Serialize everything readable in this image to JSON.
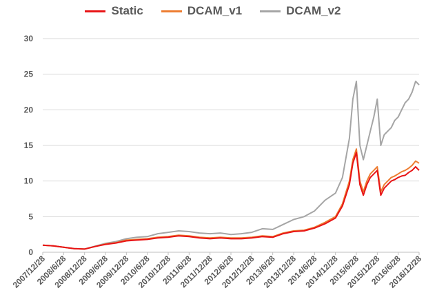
{
  "chart_data": {
    "type": "line",
    "title": "",
    "xlabel": "",
    "ylabel": "",
    "ylim": [
      0,
      30
    ],
    "yticks": [
      0,
      5,
      10,
      15,
      20,
      25,
      30
    ],
    "grid": "horizontal",
    "legend_position": "top",
    "x_tick_labels": [
      "2007/12/28",
      "2008/6/28",
      "2008/12/28",
      "2009/6/28",
      "2009/12/28",
      "2010/6/28",
      "2010/12/28",
      "2011/6/28",
      "2011/12/28",
      "2012/6/28",
      "2012/12/28",
      "2013/6/28",
      "2013/12/28",
      "2014/6/28",
      "2014/12/28",
      "2015/6/28",
      "2015/12/28",
      "2016/6/28",
      "2016/12/28"
    ],
    "x": [
      "2007-12",
      "2008-03",
      "2008-06",
      "2008-09",
      "2008-12",
      "2009-03",
      "2009-06",
      "2009-09",
      "2009-12",
      "2010-03",
      "2010-06",
      "2010-09",
      "2010-12",
      "2011-03",
      "2011-06",
      "2011-09",
      "2011-12",
      "2012-03",
      "2012-06",
      "2012-09",
      "2012-12",
      "2013-03",
      "2013-06",
      "2013-09",
      "2013-12",
      "2014-03",
      "2014-06",
      "2014-09",
      "2014-12",
      "2015-02",
      "2015-04",
      "2015-05",
      "2015-06",
      "2015-07",
      "2015-08",
      "2015-09",
      "2015-10",
      "2015-11",
      "2015-12",
      "2016-01",
      "2016-02",
      "2016-03",
      "2016-04",
      "2016-05",
      "2016-06",
      "2016-07",
      "2016-08",
      "2016-09",
      "2016-10",
      "2016-11",
      "2016-12"
    ],
    "series": [
      {
        "name": "Static",
        "color": "#e81416",
        "values": [
          1.0,
          0.9,
          0.7,
          0.5,
          0.45,
          0.8,
          1.1,
          1.3,
          1.6,
          1.7,
          1.8,
          2.0,
          2.1,
          2.3,
          2.2,
          2.0,
          1.9,
          2.0,
          1.9,
          1.9,
          2.0,
          2.2,
          2.1,
          2.6,
          2.9,
          3.0,
          3.4,
          4.0,
          4.8,
          6.5,
          9.5,
          12.5,
          14.0,
          9.5,
          8.0,
          9.5,
          10.5,
          11.0,
          11.5,
          8.0,
          9.0,
          9.5,
          10.0,
          10.2,
          10.5,
          10.7,
          10.8,
          11.2,
          11.5,
          12.0,
          11.5
        ]
      },
      {
        "name": "DCAM_v1",
        "color": "#ed7d31",
        "values": [
          1.0,
          0.9,
          0.7,
          0.5,
          0.45,
          0.8,
          1.15,
          1.35,
          1.7,
          1.8,
          1.9,
          2.1,
          2.2,
          2.4,
          2.3,
          2.1,
          2.0,
          2.1,
          2.0,
          2.0,
          2.1,
          2.3,
          2.2,
          2.7,
          3.0,
          3.1,
          3.5,
          4.2,
          5.0,
          6.8,
          10.0,
          13.0,
          14.5,
          10.0,
          8.5,
          10.0,
          11.0,
          11.5,
          12.0,
          8.5,
          9.5,
          10.0,
          10.5,
          10.7,
          11.0,
          11.3,
          11.5,
          11.8,
          12.2,
          12.8,
          12.5
        ]
      },
      {
        "name": "DCAM_v2",
        "color": "#a5a5a5",
        "values": [
          1.0,
          0.9,
          0.7,
          0.5,
          0.45,
          0.85,
          1.25,
          1.5,
          1.9,
          2.1,
          2.2,
          2.6,
          2.8,
          3.0,
          2.9,
          2.7,
          2.6,
          2.7,
          2.5,
          2.6,
          2.8,
          3.3,
          3.2,
          3.9,
          4.6,
          5.0,
          5.8,
          7.3,
          8.3,
          10.5,
          16.0,
          21.5,
          24.0,
          15.0,
          13.0,
          15.0,
          17.0,
          19.0,
          21.5,
          15.0,
          16.5,
          17.0,
          17.5,
          18.5,
          19.0,
          20.0,
          21.0,
          21.5,
          22.5,
          24.0,
          23.5
        ]
      }
    ]
  }
}
